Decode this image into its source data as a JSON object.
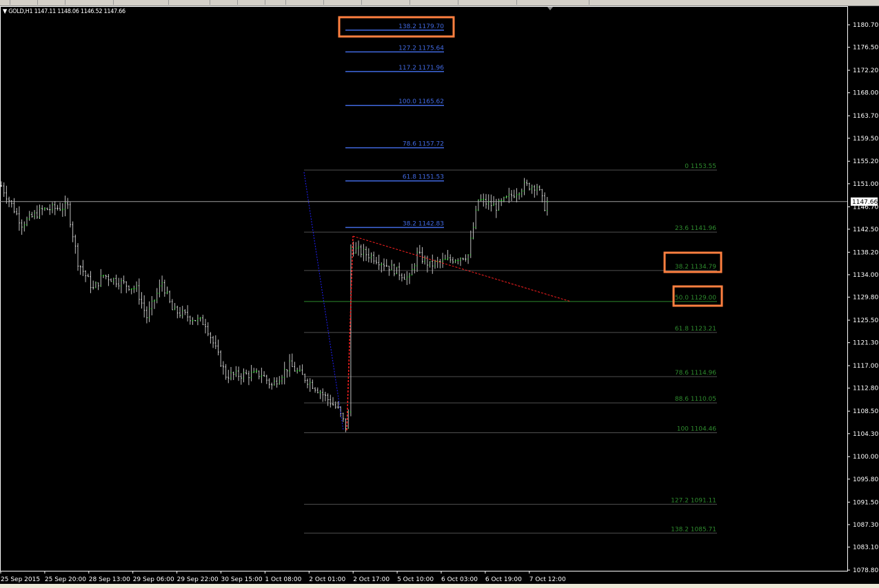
{
  "window": {
    "symbol_info": "GOLD,H1  1147.11 1148.06 1146.52 1147.66"
  },
  "colors": {
    "background": "#000000",
    "bull": "#00ff00",
    "bear": "#ffffff",
    "wick": "#c0c0c0",
    "fib_retracement": "#2e8b2e",
    "fib_extension": "#4169e1",
    "highlight": "#ff8040",
    "trend_red": "#ff2020",
    "trend_blue": "#2020ff"
  },
  "chart_data": {
    "type": "candlestick",
    "symbol": "GOLD",
    "timeframe": "H1",
    "ohlc_last": {
      "open": 1147.11,
      "high": 1148.06,
      "low": 1146.52,
      "close": 1147.66
    },
    "ylim": [
      1078.8,
      1180.7
    ],
    "y_ticks": [
      "1180.70",
      "1176.50",
      "1172.20",
      "1168.00",
      "1163.70",
      "1159.50",
      "1155.20",
      "1151.00",
      "1146.70",
      "1142.50",
      "1138.20",
      "1134.00",
      "1129.80",
      "1125.50",
      "1121.30",
      "1117.00",
      "1112.80",
      "1108.50",
      "1104.30",
      "1100.00",
      "1095.80",
      "1091.50",
      "1087.30",
      "1083.10",
      "1078.80"
    ],
    "current_price": "1147.66",
    "x_ticks": [
      "25 Sep 2015",
      "25 Sep 20:00",
      "28 Sep 13:00",
      "29 Sep 06:00",
      "29 Sep 22:00",
      "30 Sep 15:00",
      "1 Oct 08:00",
      "2 Oct 01:00",
      "2 Oct 17:00",
      "5 Oct 10:00",
      "6 Oct 03:00",
      "6 Oct 19:00",
      "7 Oct 12:00"
    ],
    "price_path": [
      [
        0,
        1150.6
      ],
      [
        8,
        1143.5
      ],
      [
        16,
        1146.1
      ],
      [
        26,
        1146.7
      ],
      [
        30,
        1136.4
      ],
      [
        36,
        1131.3
      ],
      [
        40,
        1133.9
      ],
      [
        53,
        1131.3
      ],
      [
        57,
        1126.1
      ],
      [
        63,
        1132.6
      ],
      [
        67,
        1127.4
      ],
      [
        80,
        1124.9
      ],
      [
        88,
        1115.2
      ],
      [
        102,
        1115.4
      ],
      [
        106,
        1113.3
      ],
      [
        113,
        1117.1
      ],
      [
        124,
        1112.6
      ],
      [
        132,
        1108.8
      ],
      [
        135,
        1105.6
      ],
      [
        136,
        1108.0
      ],
      [
        137,
        1139.0
      ],
      [
        145,
        1137.5
      ],
      [
        160,
        1133.2
      ],
      [
        163,
        1137.8
      ],
      [
        168,
        1135.8
      ],
      [
        183,
        1137.7
      ],
      [
        187,
        1148.0
      ],
      [
        194,
        1146.7
      ],
      [
        205,
        1150.6
      ],
      [
        210,
        1150.6
      ],
      [
        213,
        1146.7
      ],
      [
        214,
        1147.66
      ]
    ],
    "fib_retracement": [
      {
        "label": "0 1153.55",
        "price": 1153.55
      },
      {
        "label": "23.6 1141.96",
        "price": 1141.96
      },
      {
        "label": "38.2 1134.79",
        "price": 1134.79,
        "highlighted": true
      },
      {
        "label": "50.0 1129.00",
        "price": 1129.0,
        "highlighted": true
      },
      {
        "label": "61.8 1123.21",
        "price": 1123.21
      },
      {
        "label": "78.6 1114.96",
        "price": 1114.96
      },
      {
        "label": "88.6 1110.05",
        "price": 1110.05
      },
      {
        "label": "100 1104.46",
        "price": 1104.46
      },
      {
        "label": "127.2 1091.11",
        "price": 1091.11
      },
      {
        "label": "138.2 1085.71",
        "price": 1085.71
      }
    ],
    "fib_extension": [
      {
        "label": "138.2 1179.70",
        "price": 1179.7,
        "highlighted": true
      },
      {
        "label": "127.2 1175.64",
        "price": 1175.64
      },
      {
        "label": "117.2 1171.96",
        "price": 1171.96
      },
      {
        "label": "100.0  1165.62",
        "price": 1165.62
      },
      {
        "label": "78.6 1157.72",
        "price": 1157.72
      },
      {
        "label": "61.8 1151.53",
        "price": 1151.53
      },
      {
        "label": "38.2 1142.83",
        "price": 1142.83
      }
    ]
  }
}
